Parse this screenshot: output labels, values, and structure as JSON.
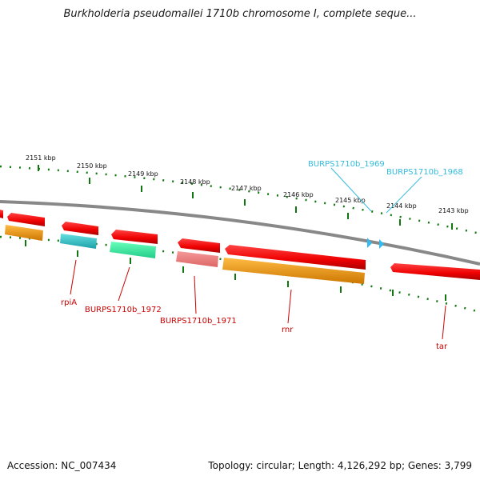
{
  "title": "Burkholderia pseudomallei 1710b chromosome I, complete seque...",
  "accession": "Accession: NC_007434",
  "summary": "Topology: circular; Length: 4,126,292 bp; Genes: 3,799",
  "colors": {
    "forward_gene": "#ff0000",
    "reverse_gene": "#ff0000",
    "cds_orange": "#ff9900",
    "cds_cyan": "#33cccc",
    "cds_green": "#33ee99",
    "cds_pink": "#ee7777",
    "backbone": "#888888",
    "tick": "#117711",
    "label_red": "#cc0000",
    "label_blue": "#33bbdd"
  },
  "kbp_labels": [
    "2151 kbp",
    "2150 kbp",
    "2149 kbp",
    "2148 kbp",
    "2147 kbp",
    "2146 kbp",
    "2145 kbp",
    "2144 kbp",
    "2143 kbp"
  ],
  "gene_labels": {
    "rpiA": "rpiA",
    "b1972": "BURPS1710b_1972",
    "b1971": "BURPS1710b_1971",
    "rnr": "rnr",
    "tar": "tar",
    "b1969": "BURPS1710b_1969",
    "b1968": "BURPS1710b_1968"
  }
}
